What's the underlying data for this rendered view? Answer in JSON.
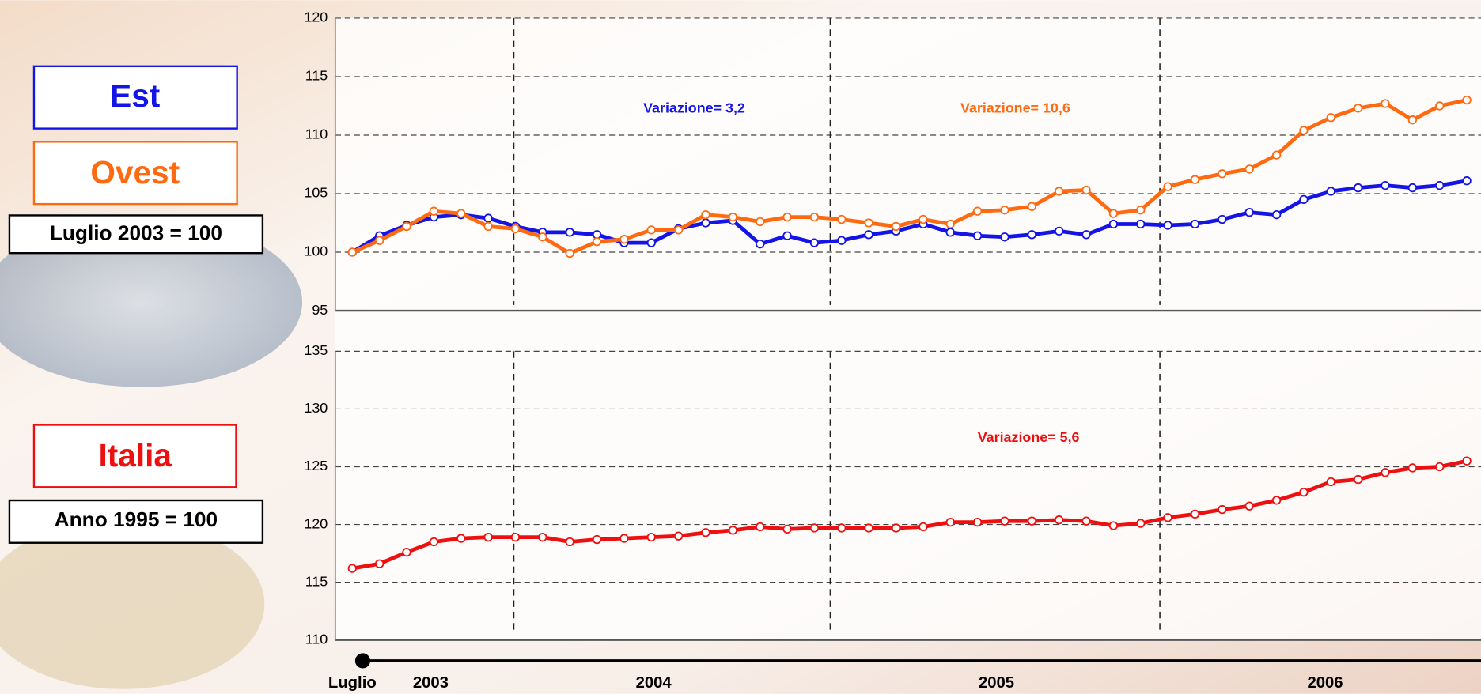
{
  "x_axis_labels": [
    "Luglio",
    "2003",
    "2004",
    "2005",
    "2006"
  ],
  "legend": {
    "top_base": "Luglio 2003 = 100",
    "bottom_base": "Anno 1995 = 100"
  },
  "chart_data": [
    {
      "type": "line",
      "ylim": [
        95,
        120
      ],
      "yticks": [
        95,
        100,
        105,
        110,
        115,
        120
      ],
      "grid": true,
      "series": [
        {
          "name": "Est",
          "color": "#1414e6",
          "values": [
            100,
            101.4,
            102.3,
            103.0,
            103.2,
            102.9,
            102.2,
            101.7,
            101.7,
            101.5,
            100.8,
            100.8,
            102.0,
            102.5,
            102.7,
            100.7,
            101.4,
            100.8,
            101.0,
            101.5,
            101.8,
            102.4,
            101.7,
            101.4,
            101.3,
            101.5,
            101.8,
            101.5,
            102.4,
            102.4,
            102.3,
            102.4,
            102.8,
            103.4,
            103.2,
            104.5,
            105.2,
            105.5,
            105.7,
            105.5,
            105.7,
            106.1
          ]
        },
        {
          "name": "Ovest",
          "color": "#ff6a10",
          "values": [
            100,
            101.0,
            102.2,
            103.5,
            103.3,
            102.2,
            102.0,
            101.3,
            99.9,
            100.9,
            101.1,
            101.9,
            101.9,
            103.2,
            103.0,
            102.6,
            103.0,
            103.0,
            102.8,
            102.5,
            102.2,
            102.8,
            102.4,
            103.5,
            103.6,
            103.9,
            105.2,
            105.3,
            103.3,
            103.6,
            105.6,
            106.2,
            106.7,
            107.1,
            108.3,
            110.4,
            111.5,
            112.3,
            112.7,
            111.3,
            112.5,
            113.0
          ]
        }
      ],
      "annotations": [
        "Variazione= 3,2",
        "Variazione= 10,6"
      ]
    },
    {
      "type": "line",
      "ylim": [
        110,
        135
      ],
      "yticks": [
        110,
        115,
        120,
        125,
        130,
        135
      ],
      "grid": true,
      "series": [
        {
          "name": "Italia",
          "color": "#ee1010",
          "values": [
            116.2,
            116.6,
            117.6,
            118.5,
            118.8,
            118.9,
            118.9,
            118.9,
            118.5,
            118.7,
            118.8,
            118.9,
            119.0,
            119.3,
            119.5,
            119.8,
            119.6,
            119.7,
            119.7,
            119.7,
            119.7,
            119.8,
            120.2,
            120.2,
            120.3,
            120.3,
            120.4,
            120.3,
            119.9,
            120.1,
            120.6,
            120.9,
            121.3,
            121.6,
            122.1,
            122.8,
            123.7,
            123.9,
            124.5,
            124.9,
            125.0,
            125.5
          ]
        }
      ],
      "annotations": [
        "Variazione= 5,6"
      ]
    }
  ]
}
